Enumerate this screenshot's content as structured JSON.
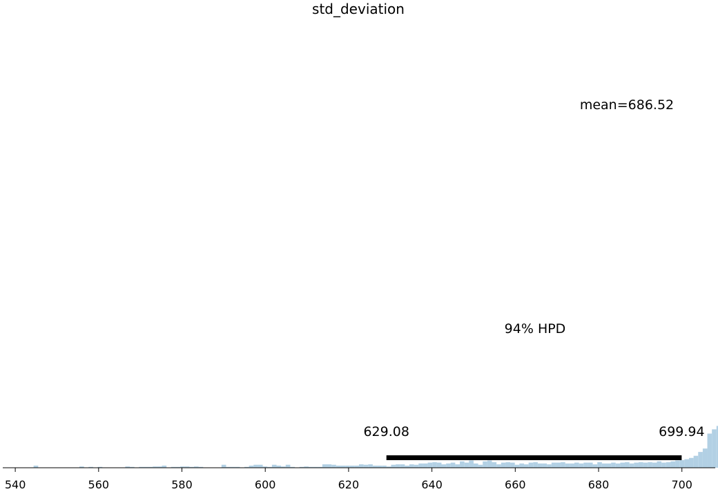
{
  "chart_data": {
    "type": "histogram",
    "title": "std_deviation",
    "xlim": [
      537,
      708
    ],
    "ylim": [
      0,
      1.0
    ],
    "bin_start": 540,
    "bin_width": 1.1,
    "bar_color": "#b2d0e4",
    "hpd_color": "#000000",
    "xticks": [
      540,
      560,
      580,
      600,
      620,
      640,
      660,
      680,
      700
    ],
    "xtick_labels": [
      "540",
      "560",
      "580",
      "600",
      "620",
      "640",
      "660",
      "680",
      "700"
    ],
    "counts": [
      0.0,
      0.0,
      0.0,
      0.0,
      0.005,
      0.0,
      0.0,
      0.0,
      0.0,
      0.0,
      0.0,
      0.0,
      0.0,
      0.0,
      0.003,
      0.0,
      0.002,
      0.0,
      0.002,
      0.0,
      0.0,
      0.0,
      0.0,
      0.0,
      0.003,
      0.002,
      0.0,
      0.002,
      0.002,
      0.002,
      0.003,
      0.003,
      0.005,
      0.0,
      0.002,
      0.002,
      0.003,
      0.003,
      0.002,
      0.003,
      0.002,
      0.0,
      0.0,
      0.0,
      0.0,
      0.007,
      0.002,
      0.002,
      0.002,
      0.0,
      0.002,
      0.005,
      0.007,
      0.007,
      0.003,
      0.002,
      0.007,
      0.005,
      0.003,
      0.007,
      0.002,
      0.0,
      0.002,
      0.003,
      0.002,
      0.002,
      0.002,
      0.008,
      0.008,
      0.007,
      0.005,
      0.005,
      0.005,
      0.005,
      0.005,
      0.008,
      0.007,
      0.008,
      0.005,
      0.005,
      0.005,
      0.003,
      0.007,
      0.008,
      0.008,
      0.005,
      0.008,
      0.007,
      0.01,
      0.01,
      0.012,
      0.013,
      0.012,
      0.008,
      0.01,
      0.012,
      0.008,
      0.015,
      0.012,
      0.017,
      0.01,
      0.007,
      0.015,
      0.017,
      0.013,
      0.008,
      0.012,
      0.013,
      0.012,
      0.007,
      0.01,
      0.008,
      0.012,
      0.013,
      0.01,
      0.01,
      0.008,
      0.012,
      0.012,
      0.013,
      0.01,
      0.01,
      0.012,
      0.01,
      0.012,
      0.012,
      0.008,
      0.013,
      0.01,
      0.01,
      0.012,
      0.01,
      0.012,
      0.013,
      0.01,
      0.012,
      0.013,
      0.012,
      0.013,
      0.012,
      0.015,
      0.012,
      0.013,
      0.015,
      0.017,
      0.018,
      0.02,
      0.023,
      0.028,
      0.037,
      0.045,
      0.08,
      0.09,
      0.098,
      0.125,
      0.178,
      0.198,
      0.235,
      0.349,
      0.365,
      0.533,
      0.659,
      1.0
    ],
    "hpd": {
      "lower": 629.08,
      "upper": 699.94,
      "lower_label": "629.08",
      "upper_label": "699.94",
      "label": "94% HPD"
    },
    "mean": {
      "value": 686.52,
      "label": "mean=686.52"
    }
  }
}
